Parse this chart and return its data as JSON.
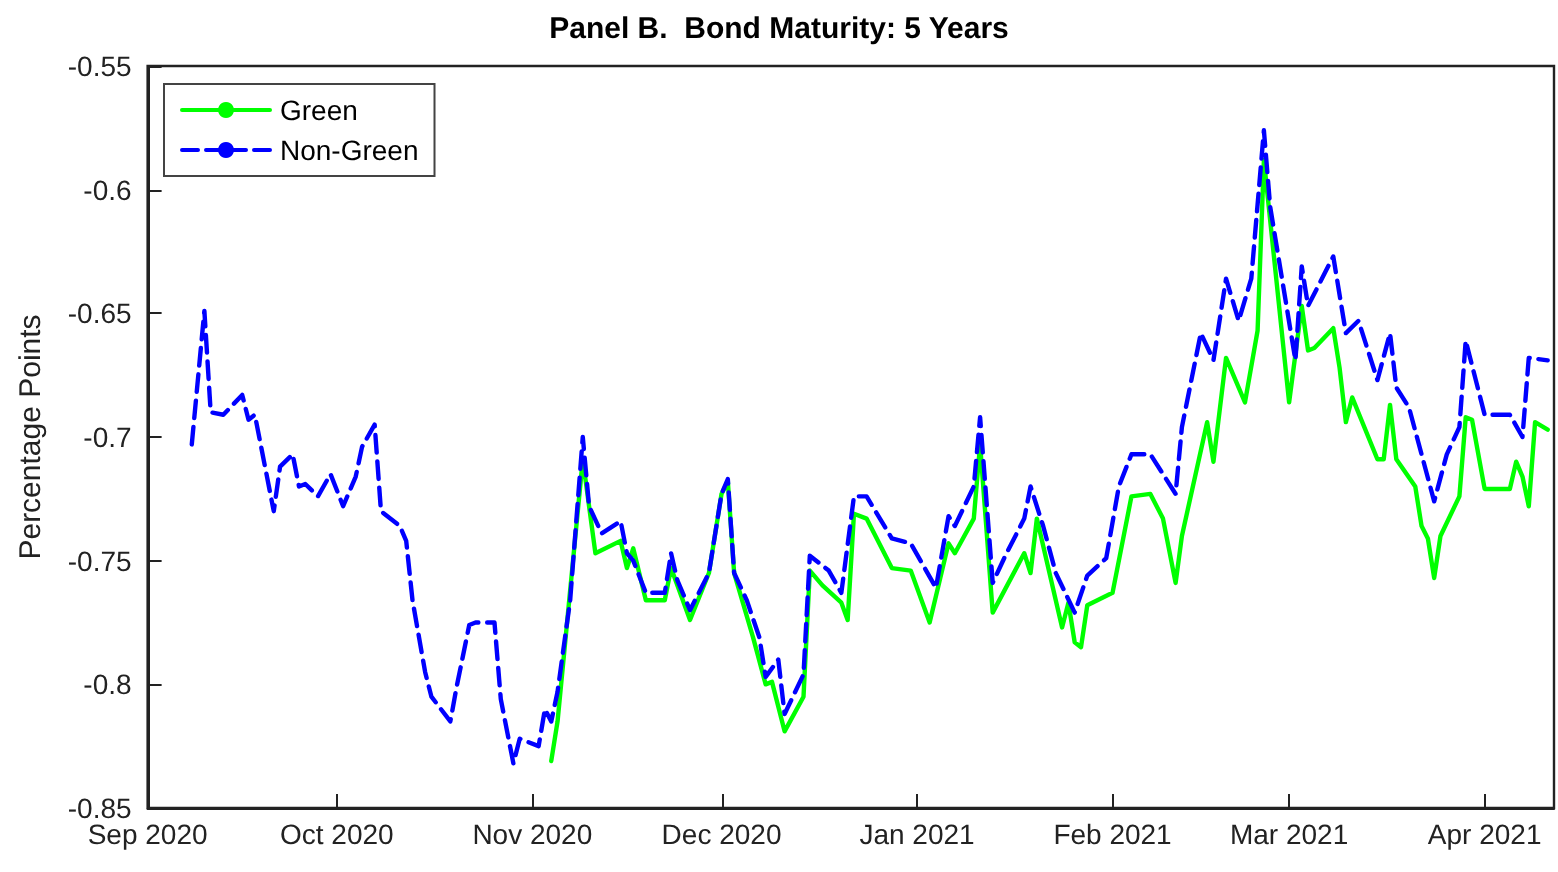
{
  "chart_data": {
    "type": "line",
    "title": "Panel B.  Bond Maturity: 5 Years",
    "ylabel": "Percentage Points",
    "xlim": [
      "2020-09-01",
      "2021-04-12"
    ],
    "xticks": [
      {
        "value": "2020-09-01",
        "label": "Sep 2020"
      },
      {
        "value": "2020-10-01",
        "label": "Oct 2020"
      },
      {
        "value": "2020-11-01",
        "label": "Nov 2020"
      },
      {
        "value": "2020-12-01",
        "label": "Dec 2020"
      },
      {
        "value": "2021-01-01",
        "label": "Jan 2021"
      },
      {
        "value": "2021-02-01",
        "label": "Feb 2021"
      },
      {
        "value": "2021-03-01",
        "label": "Mar 2021"
      },
      {
        "value": "2021-04-01",
        "label": "Apr 2021"
      }
    ],
    "ylim": [
      -0.85,
      -0.55
    ],
    "yticks": [
      -0.85,
      -0.8,
      -0.75,
      -0.7,
      -0.65,
      -0.6,
      -0.55
    ],
    "legend": "top left",
    "grid": false,
    "marker": "none",
    "series": [
      {
        "name": "Green",
        "color": "#00ff00",
        "line_style": "solid",
        "x": [
          "2020-11-04",
          "2020-11-05",
          "2020-11-09",
          "2020-11-11",
          "2020-11-15",
          "2020-11-16",
          "2020-11-17",
          "2020-11-19",
          "2020-11-22",
          "2020-11-23",
          "2020-11-26",
          "2020-11-29",
          "2020-12-01",
          "2020-12-02",
          "2020-12-03",
          "2020-12-06",
          "2020-12-08",
          "2020-12-09",
          "2020-12-11",
          "2020-12-14",
          "2020-12-15",
          "2020-12-17",
          "2020-12-20",
          "2020-12-21",
          "2020-12-22",
          "2020-12-24",
          "2020-12-28",
          "2020-12-31",
          "2021-01-03",
          "2021-01-06",
          "2021-01-07",
          "2021-01-10",
          "2021-01-11",
          "2021-01-13",
          "2021-01-18",
          "2021-01-19",
          "2021-01-20",
          "2021-01-24",
          "2021-01-25",
          "2021-01-26",
          "2021-01-27",
          "2021-01-28",
          "2021-02-01",
          "2021-02-04",
          "2021-02-07",
          "2021-02-09",
          "2021-02-11",
          "2021-02-12",
          "2021-02-16",
          "2021-02-17",
          "2021-02-19",
          "2021-02-22",
          "2021-02-24",
          "2021-02-25",
          "2021-03-01",
          "2021-03-03",
          "2021-03-04",
          "2021-03-05",
          "2021-03-08",
          "2021-03-09",
          "2021-03-10",
          "2021-03-11",
          "2021-03-15",
          "2021-03-16",
          "2021-03-17",
          "2021-03-18",
          "2021-03-21",
          "2021-03-22",
          "2021-03-23",
          "2021-03-24",
          "2021-03-25",
          "2021-03-28",
          "2021-03-29",
          "2021-03-30",
          "2021-04-01",
          "2021-04-05",
          "2021-04-06",
          "2021-04-07",
          "2021-04-08",
          "2021-04-09",
          "2021-04-11"
        ],
        "values": [
          -0.831,
          -0.815,
          -0.709,
          -0.747,
          -0.742,
          -0.753,
          -0.745,
          -0.766,
          -0.766,
          -0.753,
          -0.774,
          -0.755,
          -0.723,
          -0.718,
          -0.755,
          -0.781,
          -0.8,
          -0.799,
          -0.819,
          -0.805,
          -0.754,
          -0.76,
          -0.767,
          -0.774,
          -0.731,
          -0.733,
          -0.753,
          -0.754,
          -0.775,
          -0.743,
          -0.747,
          -0.733,
          -0.703,
          -0.771,
          -0.747,
          -0.755,
          -0.733,
          -0.777,
          -0.767,
          -0.783,
          -0.785,
          -0.768,
          -0.763,
          -0.724,
          -0.723,
          -0.733,
          -0.759,
          -0.74,
          -0.694,
          -0.71,
          -0.668,
          -0.686,
          -0.657,
          -0.588,
          -0.686,
          -0.647,
          -0.665,
          -0.664,
          -0.656,
          -0.672,
          -0.694,
          -0.684,
          -0.709,
          -0.709,
          -0.687,
          -0.709,
          -0.72,
          -0.736,
          -0.741,
          -0.757,
          -0.74,
          -0.724,
          -0.692,
          -0.693,
          -0.721,
          -0.721,
          -0.71,
          -0.716,
          -0.728,
          -0.694,
          -0.697
        ]
      },
      {
        "name": "Non-Green",
        "color": "#0000ff",
        "line_style": "dashed",
        "x": [
          "2020-09-08",
          "2020-09-10",
          "2020-09-11",
          "2020-09-13",
          "2020-09-16",
          "2020-09-17",
          "2020-09-18",
          "2020-09-21",
          "2020-09-22",
          "2020-09-24",
          "2020-09-25",
          "2020-09-26",
          "2020-09-28",
          "2020-09-30",
          "2020-10-02",
          "2020-10-04",
          "2020-10-05",
          "2020-10-07",
          "2020-10-08",
          "2020-10-11",
          "2020-10-12",
          "2020-10-13",
          "2020-10-15",
          "2020-10-16",
          "2020-10-19",
          "2020-10-20",
          "2020-10-22",
          "2020-10-23",
          "2020-10-26",
          "2020-10-27",
          "2020-10-29",
          "2020-10-30",
          "2020-11-02",
          "2020-11-03",
          "2020-11-04",
          "2020-11-05",
          "2020-11-07",
          "2020-11-09",
          "2020-11-10",
          "2020-11-12",
          "2020-11-15",
          "2020-11-16",
          "2020-11-17",
          "2020-11-19",
          "2020-11-22",
          "2020-11-23",
          "2020-11-24",
          "2020-11-26",
          "2020-11-29",
          "2020-12-01",
          "2020-12-02",
          "2020-12-03",
          "2020-12-05",
          "2020-12-07",
          "2020-12-08",
          "2020-12-10",
          "2020-12-11",
          "2020-12-14",
          "2020-12-15",
          "2020-12-18",
          "2020-12-20",
          "2020-12-22",
          "2020-12-24",
          "2020-12-28",
          "2020-12-31",
          "2021-01-04",
          "2021-01-06",
          "2021-01-07",
          "2021-01-10",
          "2021-01-11",
          "2021-01-13",
          "2021-01-15",
          "2021-01-18",
          "2021-01-19",
          "2021-01-21",
          "2021-01-23",
          "2021-01-26",
          "2021-01-28",
          "2021-01-31",
          "2021-02-02",
          "2021-02-04",
          "2021-02-07",
          "2021-02-11",
          "2021-02-12",
          "2021-02-15",
          "2021-02-17",
          "2021-02-19",
          "2021-02-21",
          "2021-02-23",
          "2021-02-25",
          "2021-02-26",
          "2021-03-02",
          "2021-03-03",
          "2021-03-04",
          "2021-03-08",
          "2021-03-10",
          "2021-03-12",
          "2021-03-15",
          "2021-03-17",
          "2021-03-18",
          "2021-03-20",
          "2021-03-24",
          "2021-03-26",
          "2021-03-28",
          "2021-03-29",
          "2021-04-01",
          "2021-04-05",
          "2021-04-07",
          "2021-04-08",
          "2021-04-11"
        ],
        "values": [
          -0.703,
          -0.649,
          -0.69,
          -0.691,
          -0.683,
          -0.693,
          -0.691,
          -0.73,
          -0.712,
          -0.707,
          -0.72,
          -0.719,
          -0.724,
          -0.715,
          -0.728,
          -0.716,
          -0.704,
          -0.695,
          -0.73,
          -0.736,
          -0.742,
          -0.766,
          -0.795,
          -0.805,
          -0.815,
          -0.801,
          -0.776,
          -0.775,
          -0.775,
          -0.806,
          -0.832,
          -0.822,
          -0.825,
          -0.81,
          -0.815,
          -0.803,
          -0.766,
          -0.7,
          -0.728,
          -0.739,
          -0.734,
          -0.747,
          -0.75,
          -0.763,
          -0.763,
          -0.747,
          -0.758,
          -0.77,
          -0.755,
          -0.723,
          -0.717,
          -0.755,
          -0.766,
          -0.781,
          -0.797,
          -0.79,
          -0.812,
          -0.796,
          -0.748,
          -0.754,
          -0.763,
          -0.724,
          -0.724,
          -0.741,
          -0.743,
          -0.761,
          -0.732,
          -0.736,
          -0.72,
          -0.692,
          -0.759,
          -0.748,
          -0.733,
          -0.72,
          -0.736,
          -0.755,
          -0.771,
          -0.756,
          -0.749,
          -0.72,
          -0.707,
          -0.707,
          -0.723,
          -0.696,
          -0.658,
          -0.669,
          -0.636,
          -0.653,
          -0.636,
          -0.576,
          -0.607,
          -0.669,
          -0.631,
          -0.647,
          -0.627,
          -0.658,
          -0.653,
          -0.677,
          -0.658,
          -0.68,
          -0.688,
          -0.726,
          -0.707,
          -0.696,
          -0.661,
          -0.691,
          -0.691,
          -0.7,
          -0.668,
          -0.669
        ]
      }
    ]
  }
}
